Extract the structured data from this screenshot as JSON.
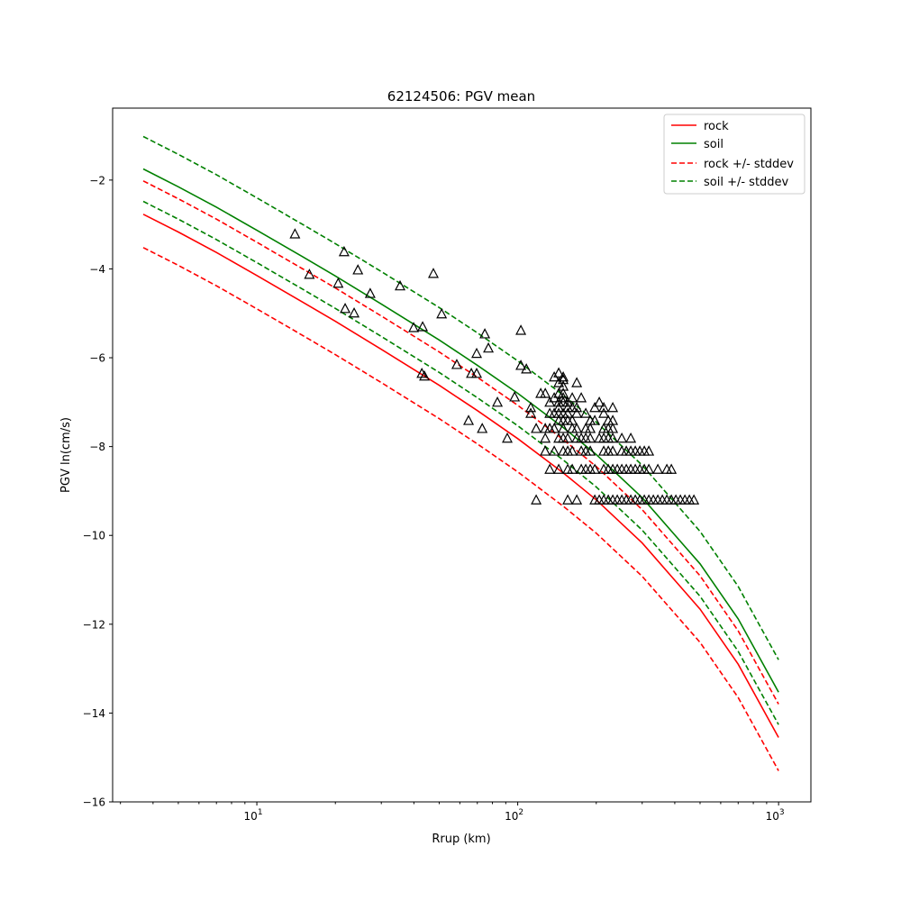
{
  "chart_data": {
    "type": "line",
    "title": "62124506: PGV mean",
    "xlabel": "Rrup (km)",
    "ylabel": "PGV ln(cm/s)",
    "xscale": "log",
    "xlim": [
      2.8,
      1330
    ],
    "ylim": [
      -16,
      -0.38
    ],
    "grid": false,
    "legend_placement": "top-right",
    "x_major_ticks": [
      {
        "value": 10,
        "base": "10",
        "exp": "1"
      },
      {
        "value": 100,
        "base": "10",
        "exp": "2"
      },
      {
        "value": 1000,
        "base": "10",
        "exp": "3"
      }
    ],
    "y_ticks": [
      -16,
      -14,
      -12,
      -10,
      -8,
      -6,
      -4,
      -2
    ],
    "y_tick_labels": [
      "−16",
      "−14",
      "−12",
      "−10",
      "−8",
      "−6",
      "−4",
      "−2"
    ],
    "x": [
      3.67,
      5,
      7,
      10,
      15,
      20,
      30,
      50,
      70,
      100,
      150,
      200,
      300,
      500,
      700,
      1000
    ],
    "series": [
      {
        "name": "rock",
        "color": "#ff0000",
        "dash": false,
        "values": [
          -2.77,
          -3.17,
          -3.63,
          -4.15,
          -4.75,
          -5.18,
          -5.81,
          -6.62,
          -7.19,
          -7.82,
          -8.6,
          -9.2,
          -10.17,
          -11.66,
          -12.9,
          -14.55
        ]
      },
      {
        "name": "soil",
        "color": "#008000",
        "dash": false,
        "values": [
          -1.75,
          -2.15,
          -2.61,
          -3.13,
          -3.73,
          -4.16,
          -4.79,
          -5.6,
          -6.17,
          -6.8,
          -7.58,
          -8.18,
          -9.15,
          -10.64,
          -11.88,
          -13.53
        ]
      },
      {
        "name": "rock +/- stddev",
        "color": "#ff0000",
        "dash": true,
        "values": [
          -2.02,
          -2.42,
          -2.88,
          -3.4,
          -4.0,
          -4.43,
          -5.06,
          -5.87,
          -6.44,
          -7.07,
          -7.85,
          -8.45,
          -9.42,
          -10.91,
          -12.15,
          -13.8
        ],
        "values_lower": [
          -3.52,
          -3.92,
          -4.38,
          -4.9,
          -5.5,
          -5.93,
          -6.56,
          -7.37,
          -7.94,
          -8.57,
          -9.35,
          -9.95,
          -10.92,
          -12.41,
          -13.65,
          -15.3
        ]
      },
      {
        "name": "soil +/- stddev",
        "color": "#008000",
        "dash": true,
        "values": [
          -1.02,
          -1.42,
          -1.88,
          -2.4,
          -3.0,
          -3.43,
          -4.06,
          -4.87,
          -5.44,
          -6.07,
          -6.85,
          -7.45,
          -8.42,
          -9.91,
          -11.15,
          -12.8
        ],
        "values_lower": [
          -2.48,
          -2.88,
          -3.34,
          -3.86,
          -4.46,
          -4.89,
          -5.52,
          -6.33,
          -6.9,
          -7.53,
          -8.31,
          -8.91,
          -9.88,
          -11.37,
          -12.61,
          -14.26
        ]
      }
    ],
    "observations": {
      "marker": "open-triangle",
      "color": "#000000",
      "points": [
        [
          14.0,
          -3.22
        ],
        [
          15.9,
          -4.13
        ],
        [
          21.6,
          -3.62
        ],
        [
          20.5,
          -4.33
        ],
        [
          24.4,
          -4.03
        ],
        [
          21.8,
          -4.9
        ],
        [
          23.6,
          -5.0
        ],
        [
          27.2,
          -4.56
        ],
        [
          35.4,
          -4.39
        ],
        [
          39.9,
          -5.33
        ],
        [
          43.2,
          -5.31
        ],
        [
          47.5,
          -4.11
        ],
        [
          42.9,
          -6.36
        ],
        [
          43.9,
          -6.42
        ],
        [
          51.1,
          -5.02
        ],
        [
          58.4,
          -6.16
        ],
        [
          64.8,
          -7.42
        ],
        [
          66.4,
          -6.36
        ],
        [
          69.6,
          -5.91
        ],
        [
          69.6,
          -6.36
        ],
        [
          73.1,
          -7.6
        ],
        [
          74.8,
          -5.47
        ],
        [
          77.2,
          -5.79
        ],
        [
          83.6,
          -7.01
        ],
        [
          91.2,
          -7.82
        ],
        [
          97.3,
          -6.89
        ],
        [
          102.8,
          -5.39
        ],
        [
          102.8,
          -6.18
        ],
        [
          107.9,
          -6.26
        ],
        [
          112.2,
          -7.13
        ],
        [
          112.2,
          -7.26
        ],
        [
          122.5,
          -6.81
        ]
      ],
      "rows": [
        {
          "y": -9.21,
          "x": [
            117.7,
            155.5,
            168.4,
            197.4,
            205.4,
            213.7,
            222.4,
            231.4,
            240.8,
            250.6,
            260.7,
            271.3,
            282.3,
            293.8,
            305.7,
            318.1,
            331.0,
            344.4,
            358.4,
            372.9,
            388.1,
            403.8,
            420.2,
            437.3,
            455.0,
            473.5
          ]
        },
        {
          "y": -8.52,
          "x": [
            132.7,
            143.6,
            155.5,
            161.8,
            175.2,
            182.3,
            189.7,
            197.4,
            213.7,
            222.4,
            231.4,
            240.8,
            250.6,
            260.7,
            271.3,
            282.3,
            293.8,
            305.7,
            318.1,
            344.4,
            372.9,
            388.1
          ]
        },
        {
          "y": -8.11,
          "x": [
            127.5,
            138.0,
            149.4,
            155.5,
            161.8,
            175.2,
            182.3,
            189.7,
            213.7,
            222.4,
            231.4,
            250.6,
            260.7,
            271.3,
            282.3,
            293.8,
            305.7,
            318.1
          ]
        },
        {
          "y": -7.82,
          "x": [
            127.5,
            143.6,
            149.4,
            155.5,
            168.4,
            175.2,
            182.3,
            189.7,
            205.4,
            213.7,
            222.4,
            231.4,
            250.6,
            271.3
          ]
        },
        {
          "y": -7.6,
          "x": [
            117.7,
            127.5,
            132.7,
            138.0,
            149.4,
            161.8,
            168.4,
            182.3,
            189.7,
            213.7,
            222.4,
            231.4
          ]
        },
        {
          "y": -7.42,
          "x": [
            143.6,
            149.4,
            155.5,
            161.8,
            189.7,
            197.4,
            222.4,
            231.4
          ]
        },
        {
          "y": -7.26,
          "x": [
            132.7,
            138.0,
            143.6,
            149.4,
            155.5,
            168.4,
            182.3,
            213.7
          ]
        },
        {
          "y": -7.13,
          "x": [
            143.6,
            155.5,
            161.8,
            168.4,
            197.4,
            213.7,
            231.4
          ]
        },
        {
          "y": -7.01,
          "x": [
            132.7,
            143.6,
            149.4,
            155.5,
            205.4
          ]
        },
        {
          "y": -6.91,
          "x": [
            138.0,
            149.4,
            161.8,
            175.2
          ]
        },
        {
          "y": -6.81,
          "x": [
            127.5,
            143.6,
            149.4
          ]
        },
        {
          "y": -6.65,
          "x": [
            149.4
          ]
        },
        {
          "y": -6.57,
          "x": [
            143.6,
            168.4
          ]
        },
        {
          "y": -6.5,
          "x": [
            149.4
          ]
        },
        {
          "y": -6.44,
          "x": [
            138.0,
            149.4
          ]
        },
        {
          "y": -6.35,
          "x": [
            143.6
          ]
        }
      ]
    }
  }
}
